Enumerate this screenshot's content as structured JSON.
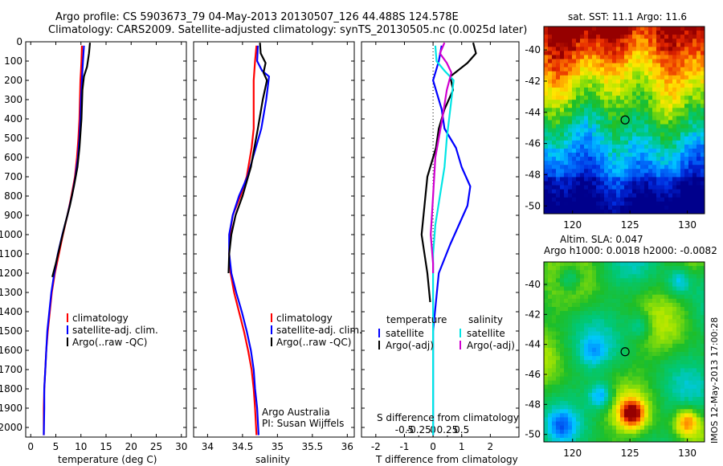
{
  "title": {
    "line1": "Argo profile: CS 5903673_79 04-May-2013 20130507_126 44.488S 124.578E",
    "line2": "Climatology: CARS2009. Satellite-adjusted climatology: synTS_20130505.nc (0.0025d later)"
  },
  "side_text": "IMOS 12-May-2013 17:00:28",
  "colors": {
    "climatology": "#ff0000",
    "satellite": "#0000ff",
    "argo": "#000000",
    "satellite_s": "#00e5e5",
    "argo_s": "#d000d0"
  },
  "chart_data": [
    {
      "type": "line",
      "id": "temperature",
      "xlabel": "temperature (deg C)",
      "xlim": [
        -1,
        31
      ],
      "xticks": [
        0,
        5,
        10,
        15,
        20,
        25,
        30
      ],
      "ylim": [
        0,
        2050
      ],
      "yticks": [
        0,
        100,
        200,
        300,
        400,
        500,
        600,
        700,
        800,
        900,
        1000,
        1100,
        1200,
        1300,
        1400,
        1500,
        1600,
        1700,
        1800,
        1900,
        2000
      ],
      "y_reversed": true,
      "legend": [
        "climatology",
        "satellite-adj. clim.",
        "Argo(..raw -QC)"
      ],
      "legend_position": "lower-center",
      "series": [
        {
          "name": "climatology",
          "color": "#ff0000",
          "x": [
            10.2,
            10.1,
            10.0,
            9.9,
            9.8,
            9.7,
            9.5,
            9.2,
            8.8,
            8.1,
            7.3,
            6.4,
            5.6,
            4.8,
            4.2,
            3.8,
            3.4,
            3.1,
            2.9,
            2.7,
            2.6,
            2.6
          ],
          "y": [
            20,
            100,
            150,
            200,
            300,
            400,
            500,
            600,
            700,
            800,
            900,
            1000,
            1100,
            1200,
            1300,
            1400,
            1500,
            1600,
            1700,
            1800,
            1900,
            2040
          ]
        },
        {
          "name": "satellite-adj. clim.",
          "color": "#0000ff",
          "x": [
            10.6,
            10.4,
            10.3,
            10.2,
            10.0,
            9.9,
            9.7,
            9.4,
            8.9,
            8.2,
            7.3,
            6.3,
            5.4,
            4.7,
            4.1,
            3.7,
            3.3,
            3.1,
            2.9,
            2.7,
            2.7,
            2.6
          ],
          "y": [
            20,
            100,
            150,
            200,
            300,
            400,
            500,
            600,
            700,
            800,
            900,
            1000,
            1100,
            1200,
            1300,
            1400,
            1500,
            1600,
            1700,
            1800,
            1900,
            2040
          ]
        },
        {
          "name": "Argo(..raw -QC)",
          "color": "#000000",
          "x": [
            11.8,
            11.6,
            11.2,
            10.6,
            10.3,
            10.1,
            9.7,
            9.3,
            8.6,
            7.8,
            6.8,
            5.9,
            5.0,
            4.3
          ],
          "y": [
            5,
            60,
            130,
            180,
            250,
            400,
            550,
            650,
            750,
            850,
            950,
            1050,
            1150,
            1220
          ]
        }
      ]
    },
    {
      "type": "line",
      "id": "salinity",
      "xlabel": "salinity",
      "xlim": [
        33.8,
        36.1
      ],
      "xticks": [
        34,
        34.5,
        35,
        35.5,
        36
      ],
      "ylim": [
        0,
        2050
      ],
      "y_reversed": true,
      "legend": [
        "climatology",
        "satellite-adj. clim.",
        "Argo(..raw -QC)"
      ],
      "legend_position": "lower-right",
      "annotation": [
        "Argo Australia",
        "PI: Susan Wijffels"
      ],
      "series": [
        {
          "name": "climatology",
          "color": "#ff0000",
          "x": [
            34.7,
            34.68,
            34.66,
            34.66,
            34.66,
            34.63,
            34.56,
            34.47,
            34.36,
            34.32,
            34.31,
            34.33,
            34.38,
            34.45,
            34.52,
            34.58,
            34.63,
            34.66,
            34.68,
            34.7
          ],
          "y": [
            20,
            100,
            200,
            300,
            450,
            550,
            700,
            800,
            900,
            1000,
            1100,
            1200,
            1300,
            1400,
            1500,
            1600,
            1700,
            1800,
            1900,
            2040
          ]
        },
        {
          "name": "satellite-adj. clim.",
          "color": "#0000ff",
          "x": [
            34.72,
            34.71,
            34.78,
            34.88,
            34.84,
            34.77,
            34.69,
            34.57,
            34.45,
            34.36,
            34.31,
            34.31,
            34.34,
            34.41,
            34.49,
            34.56,
            34.62,
            34.66,
            34.68,
            34.71,
            34.73
          ],
          "y": [
            20,
            100,
            150,
            180,
            300,
            450,
            550,
            700,
            800,
            900,
            1000,
            1100,
            1200,
            1300,
            1400,
            1500,
            1600,
            1700,
            1800,
            1900,
            2040
          ]
        },
        {
          "name": "Argo(..raw -QC)",
          "color": "#000000",
          "x": [
            34.75,
            34.76,
            34.83,
            34.8,
            34.85,
            34.79,
            34.72,
            34.62,
            34.5,
            34.4,
            34.34,
            34.31,
            34.3
          ],
          "y": [
            5,
            60,
            110,
            160,
            200,
            300,
            450,
            650,
            800,
            900,
            1000,
            1100,
            1200
          ]
        }
      ]
    },
    {
      "type": "line",
      "id": "differences",
      "xlabel": "T difference from climatology",
      "xlim": [
        -2.5,
        3
      ],
      "xticks": [
        -2,
        -1,
        0,
        1,
        2
      ],
      "xtick_labels": [
        "-2",
        "-1",
        "0",
        "1",
        "2"
      ],
      "secondary_xlabel": "S difference from climatology",
      "secondary_xticks": [
        -0.5,
        -0.25,
        0,
        0.25,
        0.5
      ],
      "secondary_xtick_labels": [
        "-0.5",
        "-0.25",
        "0",
        "0.25",
        "0.5"
      ],
      "ylim": [
        0,
        2050
      ],
      "y_reversed": true,
      "legend_groups": [
        {
          "heading": "temperature",
          "items": [
            "satellite",
            "Argo(-adj)"
          ]
        },
        {
          "heading": "salinity",
          "items": [
            "satellite",
            "Argo(-adj)"
          ]
        }
      ],
      "series": [
        {
          "name": "temperature satellite",
          "color": "#0000ff",
          "x": [
            0.3,
            0.2,
            0.1,
            0.0,
            0.3,
            0.4,
            0.8,
            1.0,
            1.3,
            1.2,
            0.9,
            0.6,
            0.2,
            0.0,
            0.0
          ],
          "y": [
            20,
            100,
            150,
            200,
            350,
            450,
            550,
            650,
            750,
            850,
            950,
            1050,
            1200,
            1500,
            2040
          ]
        },
        {
          "name": "temperature Argo(-adj)",
          "color": "#000000",
          "x": [
            1.4,
            1.5,
            1.2,
            0.6,
            0.7,
            0.4,
            0.2,
            0.1,
            -0.2,
            -0.3,
            -0.4,
            -0.3,
            -0.2,
            -0.1
          ],
          "y": [
            5,
            60,
            110,
            180,
            250,
            350,
            450,
            550,
            700,
            850,
            1000,
            1100,
            1200,
            1350
          ]
        },
        {
          "name": "salinity satellite",
          "color": "#00e5e5",
          "x": [
            0.02,
            0.03,
            0.1,
            0.18,
            0.15,
            0.12,
            0.1,
            0.06,
            0.02,
            0.0,
            0.0,
            0.0,
            0.0,
            0.0
          ],
          "y": [
            20,
            100,
            150,
            200,
            350,
            500,
            650,
            800,
            950,
            1100,
            1300,
            1500,
            1800,
            2040
          ]
        },
        {
          "name": "salinity Argo(-adj)",
          "color": "#d000d0",
          "x": [
            0.1,
            0.06,
            0.12,
            0.16,
            0.12,
            0.08,
            0.02,
            0.0,
            -0.02,
            0.0,
            0.0
          ],
          "y": [
            5,
            60,
            110,
            160,
            250,
            400,
            600,
            800,
            1000,
            1150,
            1200
          ]
        }
      ]
    }
  ],
  "maps": [
    {
      "id": "sst_map",
      "title": "sat. SST: 11.1  Argo: 11.6",
      "xticks": [
        120,
        125,
        130
      ],
      "yticks": [
        -40,
        -42,
        -44,
        -46,
        -48,
        -50
      ],
      "xlim": [
        117.5,
        131.5
      ],
      "ylim": [
        -50.5,
        -38.5
      ],
      "marker": {
        "lon": 124.578,
        "lat": -44.488
      }
    },
    {
      "id": "sla_map",
      "title_line1": "Altim. SLA: 0.047",
      "title_line2": "Argo h1000: 0.0018 h2000: -0.0082",
      "xticks": [
        120,
        125,
        130
      ],
      "yticks": [
        -40,
        -42,
        -44,
        -46,
        -48,
        -50
      ],
      "xlim": [
        117.5,
        131.5
      ],
      "ylim": [
        -50.5,
        -38.5
      ],
      "marker": {
        "lon": 124.578,
        "lat": -44.488
      }
    }
  ]
}
